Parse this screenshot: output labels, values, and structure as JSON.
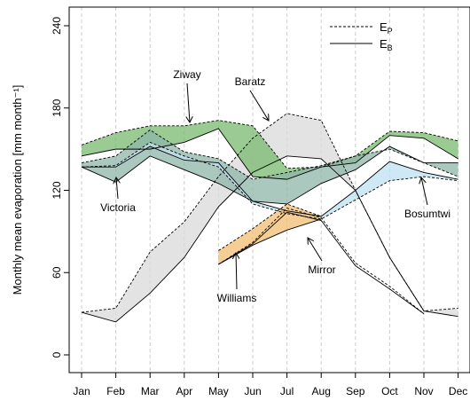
{
  "chart_data": {
    "type": "band-line",
    "ylabel": "Monthly mean evaporation [mm month⁻¹]",
    "categories": [
      "Jan",
      "Feb",
      "Mar",
      "Apr",
      "May",
      "Jun",
      "Jul",
      "Aug",
      "Sep",
      "Oct",
      "Nov",
      "Dec"
    ],
    "ylim": [
      0,
      240
    ],
    "yticks": [
      0,
      60,
      120,
      180,
      240
    ],
    "grid": true,
    "legend": [
      {
        "symbol": "E",
        "sub": "P",
        "style": "dashed"
      },
      {
        "symbol": "E",
        "sub": "B",
        "style": "solid"
      }
    ],
    "legend_position": "top-right",
    "lakes": [
      {
        "name": "Baratz",
        "color": "#d9d9d9",
        "ep": [
          31,
          34,
          75,
          97,
          130,
          158,
          176,
          171,
          120,
          71,
          32,
          34
        ],
        "eb": [
          31,
          24,
          45,
          71,
          108,
          133,
          145,
          143,
          120,
          71,
          32,
          28
        ]
      },
      {
        "name": "Ziway",
        "color": "#78b96e",
        "ep": [
          153,
          162,
          167,
          167,
          171,
          167,
          136,
          137,
          145,
          163,
          162,
          156
        ],
        "eb": [
          145,
          150,
          150,
          155,
          165,
          130,
          128,
          137,
          140,
          160,
          158,
          143
        ]
      },
      {
        "name": "Victoria",
        "color": "#8fb5a8",
        "ep": [
          140,
          145,
          164,
          148,
          143,
          128,
          133,
          138,
          145,
          150,
          140,
          130
        ],
        "eb": [
          137,
          126,
          145,
          135,
          125,
          112,
          110,
          125,
          135,
          152,
          140,
          140
        ]
      },
      {
        "name": "Bosumtwi",
        "color": "#bfe0f2",
        "ep": [
          137,
          138,
          155,
          145,
          137,
          110,
          103,
          99,
          113,
          127,
          130,
          127
        ],
        "eb": [
          137,
          137,
          152,
          142,
          140,
          112,
          105,
          101,
          120,
          141,
          133,
          128
        ]
      },
      {
        "name": "Mirror",
        "color": "#f2bd72",
        "ep": [
          null,
          null,
          null,
          null,
          76,
          92,
          110,
          101,
          null,
          null,
          null,
          null
        ],
        "eb": [
          null,
          null,
          null,
          null,
          66,
          80,
          91,
          99,
          null,
          null,
          null,
          null
        ]
      },
      {
        "name": "Williams",
        "color": "none",
        "ep": [
          null,
          null,
          null,
          null,
          66,
          82,
          107,
          100,
          67,
          50,
          30,
          null
        ],
        "eb": [
          null,
          null,
          null,
          null,
          66,
          81,
          104,
          98,
          65,
          48,
          30,
          null
        ]
      }
    ]
  }
}
